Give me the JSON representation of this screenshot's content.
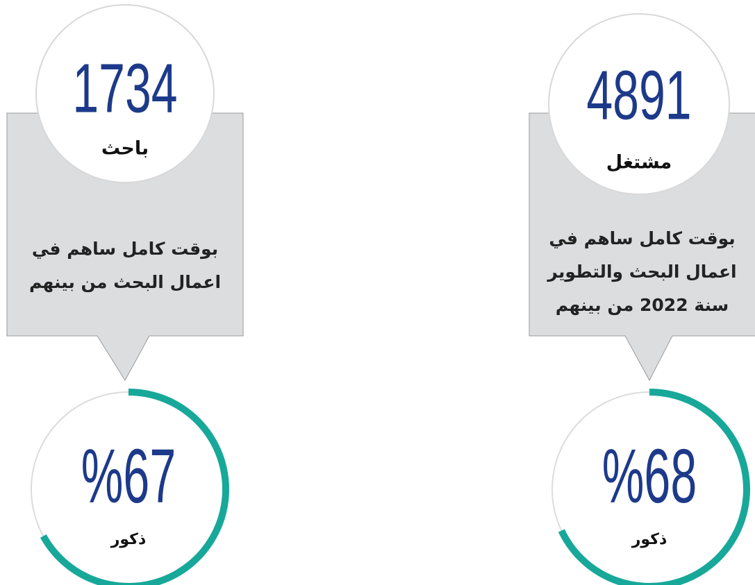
{
  "cards": [
    {
      "number": "1734",
      "label": "باحث",
      "description": [
        "بوقت كامل ساهم في",
        "اعمال البحث من بينهم"
      ],
      "percent": {
        "value": 67,
        "label": "%67"
      },
      "percent_caption": "ذكور"
    },
    {
      "number": "4891",
      "label": "مشتغل",
      "description": [
        "بوقت كامل ساهم في",
        "اعمال البحث والتطوير",
        "سنة 2022 من بينهم"
      ],
      "percent": {
        "value": 68,
        "label": "%68"
      },
      "percent_caption": "ذكور"
    }
  ]
}
